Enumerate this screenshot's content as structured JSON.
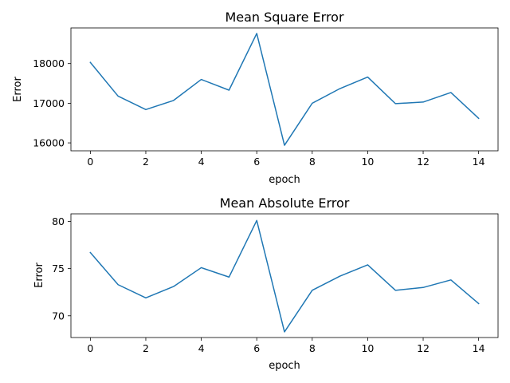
{
  "chart_data": [
    {
      "type": "line",
      "title": "Mean Square Error",
      "xlabel": "epoch",
      "ylabel": "Error",
      "x": [
        0,
        1,
        2,
        3,
        4,
        5,
        6,
        7,
        8,
        9,
        10,
        11,
        12,
        13,
        14
      ],
      "series": [
        {
          "values": [
            18030,
            17180,
            16840,
            17070,
            17600,
            17330,
            18760,
            15940,
            17000,
            17370,
            17660,
            16990,
            17030,
            17270,
            16620
          ]
        }
      ],
      "xlim": [
        -0.7,
        14.7
      ],
      "ylim": [
        15800,
        18900
      ],
      "xticks": [
        0,
        2,
        4,
        6,
        8,
        10,
        12,
        14
      ],
      "yticks": [
        16000,
        17000,
        18000
      ],
      "grid": false,
      "color": "#1f77b4"
    },
    {
      "type": "line",
      "title": "Mean Absolute Error",
      "xlabel": "epoch",
      "ylabel": "Error",
      "x": [
        0,
        1,
        2,
        3,
        4,
        5,
        6,
        7,
        8,
        9,
        10,
        11,
        12,
        13,
        14
      ],
      "series": [
        {
          "values": [
            76.7,
            73.3,
            71.9,
            73.1,
            75.1,
            74.1,
            80.1,
            68.3,
            72.7,
            74.2,
            75.4,
            72.7,
            73.0,
            73.8,
            71.3
          ]
        }
      ],
      "xlim": [
        -0.7,
        14.7
      ],
      "ylim": [
        67.7,
        80.8
      ],
      "xticks": [
        0,
        2,
        4,
        6,
        8,
        10,
        12,
        14
      ],
      "yticks": [
        70,
        75,
        80
      ],
      "grid": false,
      "color": "#1f77b4"
    }
  ]
}
